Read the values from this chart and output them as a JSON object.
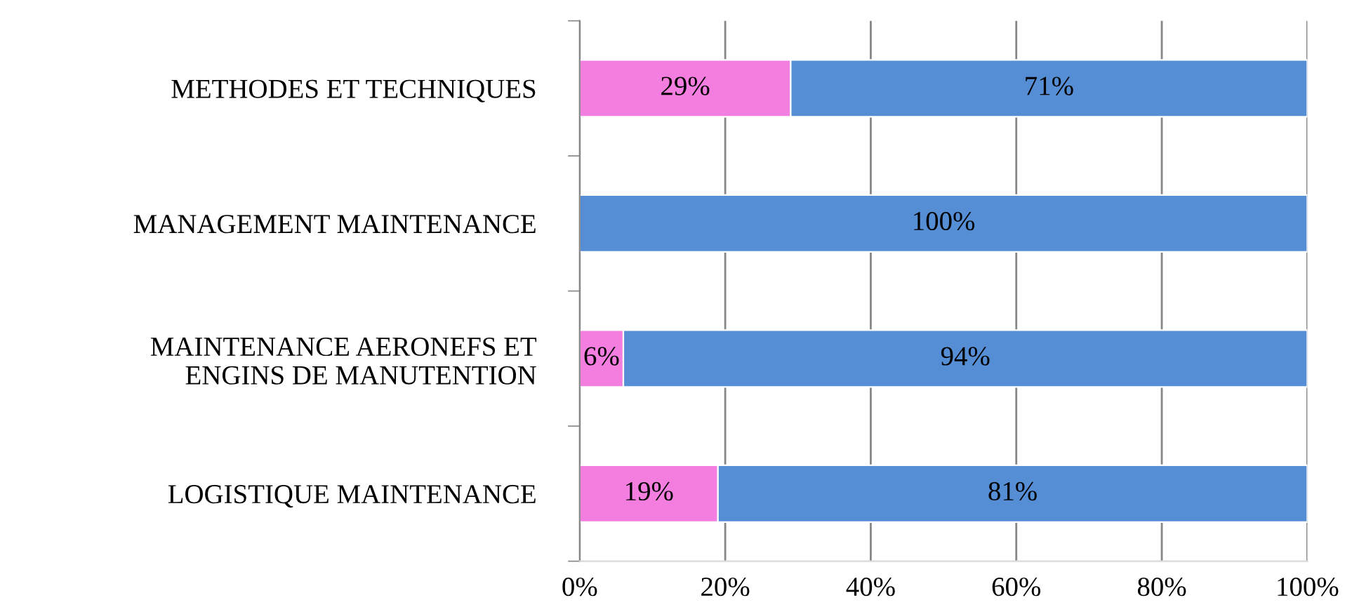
{
  "chart_data": {
    "type": "bar",
    "orientation": "horizontal",
    "stacked": true,
    "categories": [
      "METHODES ET TECHNIQUES",
      "MANAGEMENT MAINTENANCE",
      "MAINTENANCE AERONEFS ET\nENGINS DE MANUTENTION",
      "LOGISTIQUE MAINTENANCE"
    ],
    "series": [
      {
        "color": "#f47ee0",
        "values": [
          29,
          0,
          6,
          19
        ],
        "value_labels": [
          "29%",
          null,
          "6%",
          "19%"
        ]
      },
      {
        "color": "#558ed5",
        "values": [
          71,
          100,
          94,
          81
        ],
        "value_labels": [
          "71%",
          "100%",
          "94%",
          "81%"
        ]
      }
    ],
    "xlim": [
      0,
      100
    ],
    "xticks": [
      {
        "value": 0,
        "label": "0%"
      },
      {
        "value": 20,
        "label": "20%"
      },
      {
        "value": 40,
        "label": "40%"
      },
      {
        "value": 60,
        "label": "60%"
      },
      {
        "value": 80,
        "label": "80%"
      },
      {
        "value": 100,
        "label": "100%"
      }
    ],
    "grid": "x",
    "legend": false
  }
}
